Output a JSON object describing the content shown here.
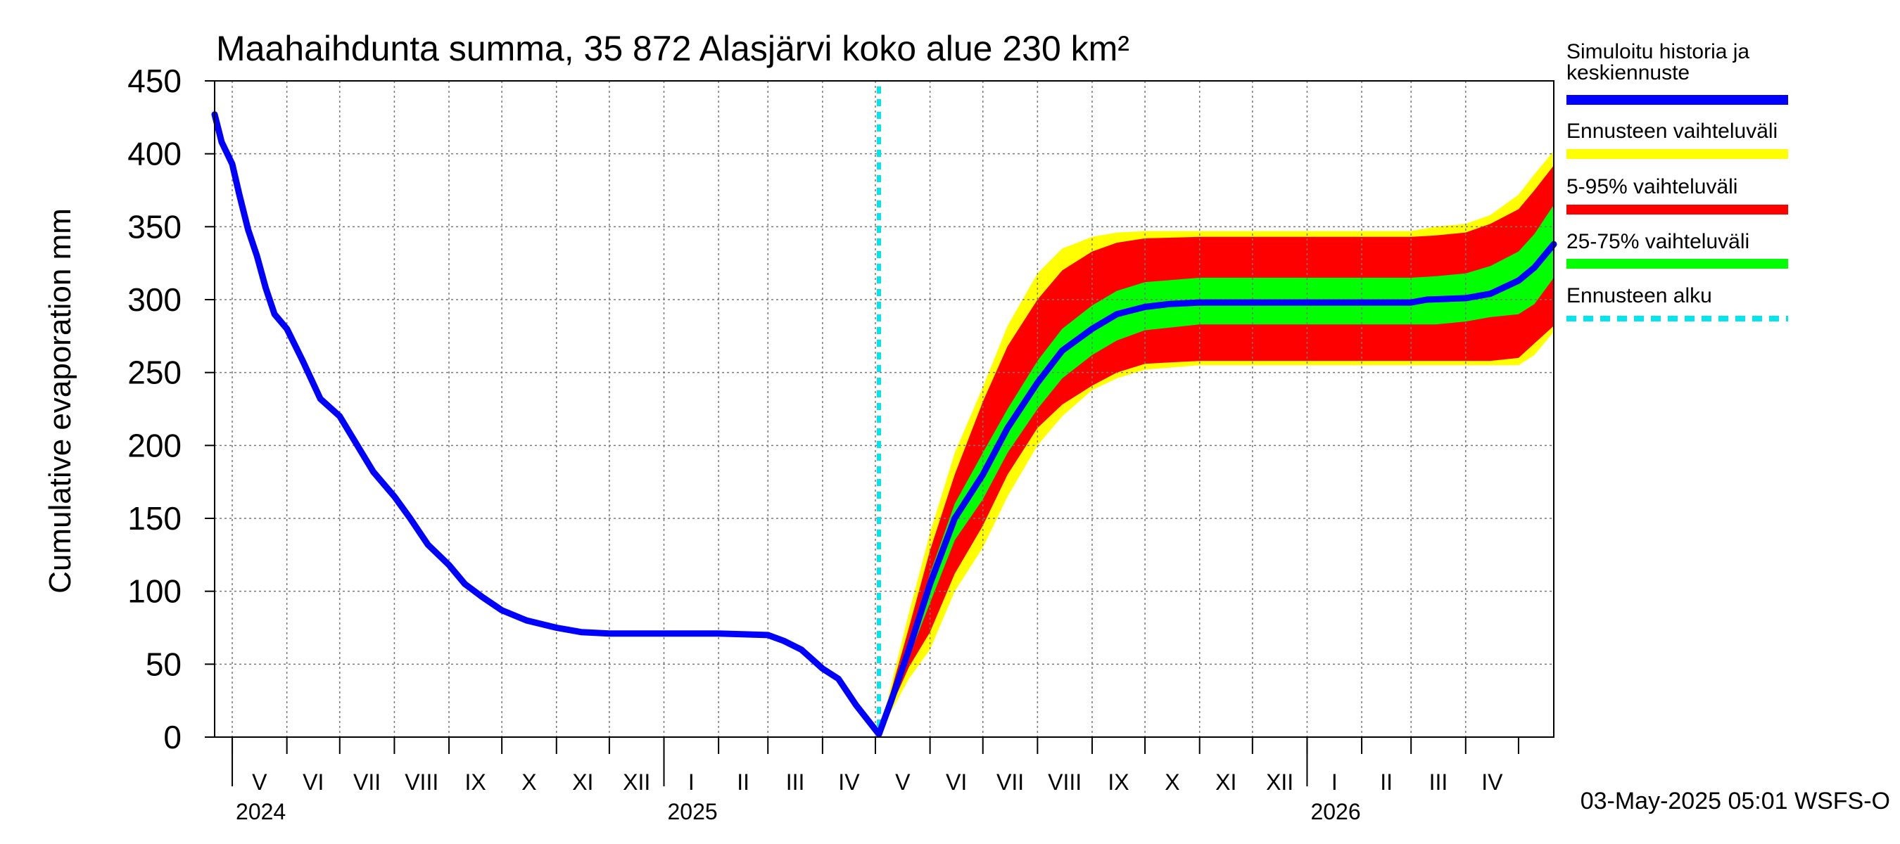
{
  "chart_data": {
    "type": "area",
    "title": "Maahaihdunta summa, 35 872 Alasjärvi koko alue 230 km²",
    "ylabel": "Cumulative evaporation   mm",
    "xlabel": "",
    "ylim": [
      0,
      450
    ],
    "yticks": [
      0,
      50,
      100,
      150,
      200,
      250,
      300,
      350,
      400,
      450
    ],
    "grid": true,
    "legend_position": "right",
    "x_domain": [
      "2024-04-21",
      "2026-05-21"
    ],
    "forecast_start": "2025-05-03",
    "months": [
      {
        "label": "V",
        "start": "2024-05-01",
        "end": "2024-06-01"
      },
      {
        "label": "VI",
        "start": "2024-06-01",
        "end": "2024-07-01"
      },
      {
        "label": "VII",
        "start": "2024-07-01",
        "end": "2024-08-01"
      },
      {
        "label": "VIII",
        "start": "2024-08-01",
        "end": "2024-09-01"
      },
      {
        "label": "IX",
        "start": "2024-09-01",
        "end": "2024-10-01"
      },
      {
        "label": "X",
        "start": "2024-10-01",
        "end": "2024-11-01"
      },
      {
        "label": "XI",
        "start": "2024-11-01",
        "end": "2024-12-01"
      },
      {
        "label": "XII",
        "start": "2024-12-01",
        "end": "2025-01-01"
      },
      {
        "label": "I",
        "start": "2025-01-01",
        "end": "2025-02-01"
      },
      {
        "label": "II",
        "start": "2025-02-01",
        "end": "2025-03-01"
      },
      {
        "label": "III",
        "start": "2025-03-01",
        "end": "2025-04-01"
      },
      {
        "label": "IV",
        "start": "2025-04-01",
        "end": "2025-05-01"
      },
      {
        "label": "V",
        "start": "2025-05-01",
        "end": "2025-06-01"
      },
      {
        "label": "VI",
        "start": "2025-06-01",
        "end": "2025-07-01"
      },
      {
        "label": "VII",
        "start": "2025-07-01",
        "end": "2025-08-01"
      },
      {
        "label": "VIII",
        "start": "2025-08-01",
        "end": "2025-09-01"
      },
      {
        "label": "IX",
        "start": "2025-09-01",
        "end": "2025-10-01"
      },
      {
        "label": "X",
        "start": "2025-10-01",
        "end": "2025-11-01"
      },
      {
        "label": "XI",
        "start": "2025-11-01",
        "end": "2025-12-01"
      },
      {
        "label": "XII",
        "start": "2025-12-01",
        "end": "2026-01-01"
      },
      {
        "label": "I",
        "start": "2026-01-01",
        "end": "2026-02-01"
      },
      {
        "label": "II",
        "start": "2026-02-01",
        "end": "2026-03-01"
      },
      {
        "label": "III",
        "start": "2026-03-01",
        "end": "2026-04-01"
      },
      {
        "label": "IV",
        "start": "2026-04-01",
        "end": "2026-05-01"
      }
    ],
    "years": [
      {
        "label": "2024",
        "date": "2024-05-01"
      },
      {
        "label": "2025",
        "date": "2025-01-01"
      },
      {
        "label": "2026",
        "date": "2026-01-01"
      }
    ],
    "series": [
      {
        "name": "Simuloitu historia ja keskiennuste",
        "color": "#0000ff",
        "x": [
          "2024-04-21",
          "2024-04-25",
          "2024-05-01",
          "2024-05-05",
          "2024-05-10",
          "2024-05-15",
          "2024-05-20",
          "2024-05-25",
          "2024-06-01",
          "2024-06-10",
          "2024-06-20",
          "2024-07-01",
          "2024-07-10",
          "2024-07-20",
          "2024-08-01",
          "2024-08-10",
          "2024-08-20",
          "2024-09-01",
          "2024-09-10",
          "2024-09-20",
          "2024-10-01",
          "2024-10-15",
          "2024-11-01",
          "2024-11-15",
          "2024-12-01",
          "2025-01-01",
          "2025-02-01",
          "2025-03-01",
          "2025-03-10",
          "2025-03-20",
          "2025-04-01",
          "2025-04-10",
          "2025-04-20",
          "2025-05-03",
          "2025-05-10",
          "2025-05-20",
          "2025-06-01",
          "2025-06-15",
          "2025-07-01",
          "2025-07-15",
          "2025-08-01",
          "2025-08-15",
          "2025-09-01",
          "2025-09-15",
          "2025-10-01",
          "2025-10-15",
          "2025-11-01",
          "2025-12-01",
          "2026-01-01",
          "2026-02-01",
          "2026-03-01",
          "2026-03-10",
          "2026-04-01",
          "2026-04-15",
          "2026-05-01",
          "2026-05-10",
          "2026-05-21"
        ],
        "y": [
          427,
          408,
          393,
          372,
          348,
          330,
          308,
          290,
          280,
          258,
          232,
          220,
          202,
          182,
          165,
          150,
          132,
          118,
          105,
          96,
          87,
          80,
          75,
          72,
          71,
          71,
          71,
          70,
          66,
          60,
          47,
          40,
          22,
          2,
          25,
          60,
          105,
          150,
          180,
          212,
          243,
          265,
          280,
          290,
          295,
          297,
          298,
          298,
          298,
          298,
          298,
          300,
          301,
          304,
          313,
          322,
          338
        ]
      },
      {
        "name": "Ennusteen vaihteluväli",
        "color": "#ffff00",
        "x": [
          "2025-05-03",
          "2025-05-20",
          "2025-06-01",
          "2025-06-15",
          "2025-07-01",
          "2025-07-15",
          "2025-08-01",
          "2025-08-15",
          "2025-09-01",
          "2025-09-15",
          "2025-10-01",
          "2025-11-01",
          "2025-12-01",
          "2026-01-01",
          "2026-02-01",
          "2026-03-01",
          "2026-03-15",
          "2026-04-01",
          "2026-04-15",
          "2026-05-01",
          "2026-05-10",
          "2026-05-21"
        ],
        "upper": [
          2,
          85,
          140,
          195,
          240,
          282,
          318,
          335,
          343,
          346,
          347,
          347,
          347,
          347,
          347,
          347,
          350,
          352,
          358,
          372,
          386,
          402
        ],
        "lower": [
          2,
          40,
          60,
          100,
          130,
          165,
          200,
          220,
          238,
          246,
          252,
          255,
          255,
          255,
          255,
          255,
          255,
          255,
          255,
          255,
          262,
          278
        ]
      },
      {
        "name": "5-95% vaihteluväli",
        "color": "#ff0000",
        "x": [
          "2025-05-03",
          "2025-05-20",
          "2025-06-01",
          "2025-06-15",
          "2025-07-01",
          "2025-07-15",
          "2025-08-01",
          "2025-08-15",
          "2025-09-01",
          "2025-09-15",
          "2025-10-01",
          "2025-11-01",
          "2025-12-01",
          "2026-01-01",
          "2026-02-01",
          "2026-03-01",
          "2026-03-15",
          "2026-04-01",
          "2026-04-15",
          "2026-05-01",
          "2026-05-10",
          "2026-05-21"
        ],
        "upper": [
          2,
          75,
          128,
          180,
          230,
          268,
          300,
          320,
          333,
          339,
          342,
          343,
          343,
          343,
          343,
          343,
          344,
          346,
          352,
          362,
          375,
          392
        ],
        "lower": [
          2,
          48,
          72,
          112,
          145,
          180,
          212,
          228,
          241,
          250,
          256,
          258,
          258,
          258,
          258,
          258,
          258,
          258,
          258,
          260,
          270,
          282
        ]
      },
      {
        "name": "25-75% vaihteluväli",
        "color": "#00ff00",
        "x": [
          "2025-05-03",
          "2025-05-20",
          "2025-06-01",
          "2025-06-15",
          "2025-07-01",
          "2025-07-15",
          "2025-08-01",
          "2025-08-15",
          "2025-09-01",
          "2025-09-15",
          "2025-10-01",
          "2025-11-01",
          "2025-12-01",
          "2026-01-01",
          "2026-02-01",
          "2026-03-01",
          "2026-03-15",
          "2026-04-01",
          "2026-04-15",
          "2026-05-01",
          "2026-05-10",
          "2026-05-21"
        ],
        "upper": [
          2,
          65,
          112,
          160,
          195,
          225,
          258,
          280,
          296,
          306,
          312,
          315,
          315,
          315,
          315,
          315,
          316,
          318,
          323,
          333,
          345,
          365
        ],
        "lower": [
          2,
          55,
          92,
          135,
          163,
          195,
          225,
          246,
          262,
          272,
          279,
          283,
          283,
          283,
          283,
          283,
          283,
          285,
          288,
          290,
          297,
          315
        ]
      },
      {
        "name": "Ennusteen alku",
        "color": "#00e5ee"
      }
    ],
    "timestamp": "03-May-2025 05:01 WSFS-O"
  }
}
